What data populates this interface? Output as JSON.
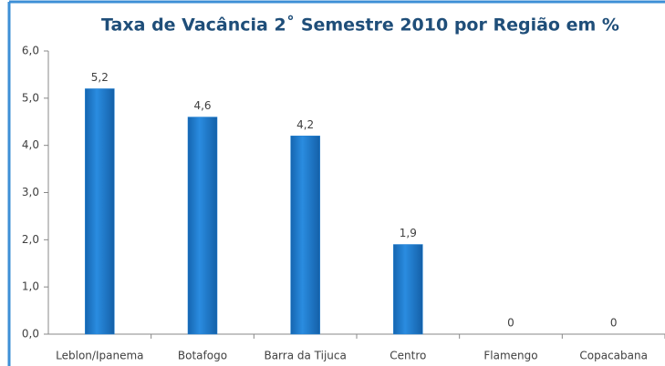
{
  "chart_data": {
    "type": "bar",
    "title": "Taxa de Vacância  2˚ Semestre 2010 por Região em %",
    "categories": [
      "Leblon/Ipanema",
      "Botafogo",
      "Barra da Tijuca",
      "Centro",
      "Flamengo",
      "Copacabana"
    ],
    "values": [
      5.2,
      4.6,
      4.2,
      1.9,
      0,
      0
    ],
    "value_labels": [
      "5,2",
      "4,6",
      "4,2",
      "1,9",
      "0",
      "0"
    ],
    "color": "#1e7fd2",
    "ylim": [
      0,
      6
    ],
    "yticks": [
      {
        "value": 0,
        "label": "0,0"
      },
      {
        "value": 1,
        "label": "1,0"
      },
      {
        "value": 2,
        "label": "2,0"
      },
      {
        "value": 3,
        "label": "3,0"
      },
      {
        "value": 4,
        "label": "4,0"
      },
      {
        "value": 5,
        "label": "5,0"
      },
      {
        "value": 6,
        "label": "6,0"
      }
    ],
    "grid": false
  }
}
